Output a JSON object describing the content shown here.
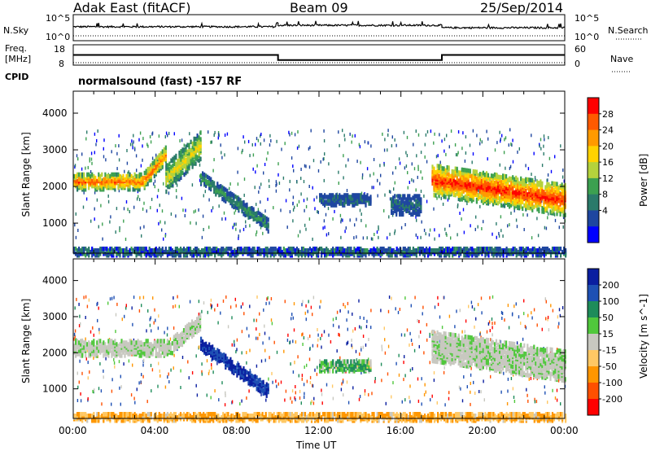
{
  "header": {
    "station": "Adak East (fitACF)",
    "beam": "Beam 09",
    "date": "25/Sep/2014"
  },
  "sky_panel": {
    "left_label": "N.Sky",
    "right_label": "N.Search",
    "left_ticks": [
      "10^5",
      "10^0"
    ],
    "right_ticks": [
      "10^5",
      "10^0"
    ]
  },
  "freq_panel": {
    "left_label_line1": "Freq.",
    "left_label_line2": "[MHz]",
    "cpid_label": "CPID",
    "right_label": "Nave",
    "left_ticks": [
      "18",
      "8"
    ],
    "right_ticks": [
      "60",
      "0"
    ]
  },
  "cpid_text": "normalsound (fast) -157 RF",
  "x_axis": {
    "label": "Time UT",
    "ticks": [
      "00:00",
      "04:00",
      "08:00",
      "12:00",
      "16:00",
      "20:00",
      "00:00"
    ]
  },
  "power_panel": {
    "ylabel": "Slant Range [km]",
    "yticks": [
      "4000",
      "3000",
      "2000",
      "1000"
    ],
    "cbar_label": "Power [dB]",
    "cbar_ticks": [
      "28",
      "24",
      "20",
      "16",
      "12",
      "8",
      "4"
    ],
    "cbar_colors": [
      "#ff0000",
      "#ff5a00",
      "#ff9a00",
      "#ffd200",
      "#b4d23c",
      "#3ca050",
      "#2a7a6a",
      "#1e46a0",
      "#0000ff"
    ]
  },
  "velocity_panel": {
    "ylabel": "Slant Range [km]",
    "yticks": [
      "4000",
      "3000",
      "2000",
      "1000"
    ],
    "cbar_label": "Velocity [m s^-1]",
    "cbar_ticks": [
      "200",
      "100",
      "50",
      "15",
      "-15",
      "-50",
      "-100",
      "-200"
    ],
    "cbar_colors": [
      "#0a1ea0",
      "#1e50b4",
      "#1e8c5a",
      "#50c83c",
      "#c8c8c0",
      "#ffc864",
      "#ff9600",
      "#ff5000",
      "#ff0000"
    ]
  },
  "chart_data": {
    "type": "heatmap",
    "title": "Adak East (fitACF) Beam 09 25/Sep/2014",
    "xlabel": "Time UT",
    "ylabel": "Slant Range [km]",
    "xlim_hours": [
      0,
      24
    ],
    "ylim_km": [
      180,
      4600
    ],
    "nsky_nsearch": {
      "segments": [
        {
          "t_start": 0,
          "t_end": 10,
          "level": 0.52
        },
        {
          "t_start": 10,
          "t_end": 18,
          "level": 0.62
        },
        {
          "t_start": 18,
          "t_end": 24,
          "level": 0.45
        }
      ]
    },
    "frequency_mhz": [
      {
        "t_start": 0,
        "t_end": 10,
        "value": 13
      },
      {
        "t_start": 10,
        "t_end": 18,
        "value": 10.5
      },
      {
        "t_start": 18,
        "t_end": 24,
        "value": 13
      }
    ],
    "power_echo_regions": [
      {
        "name": "early band",
        "t": [
          0,
          4.5
        ],
        "range_km": [
          1980,
          2500
        ],
        "peak_db": 26
      },
      {
        "name": "rising arc",
        "t": [
          4.5,
          6.2
        ],
        "range_km": [
          2300,
          3300
        ],
        "peak_db": 18
      },
      {
        "name": "descending arc",
        "t": [
          6.2,
          9.5
        ],
        "range_km": [
          900,
          2500
        ],
        "peak_db": 10
      },
      {
        "name": "midday patch",
        "t": [
          12,
          14.5
        ],
        "range_km": [
          1550,
          1850
        ],
        "peak_db": 6
      },
      {
        "name": "afternoon patch",
        "t": [
          15.5,
          17
        ],
        "range_km": [
          1300,
          1800
        ],
        "peak_db": 6
      },
      {
        "name": "evening band",
        "t": [
          17.5,
          24
        ],
        "range_km": [
          1300,
          2500
        ],
        "peak_db": 30
      },
      {
        "name": "near-range clutter",
        "t": [
          0,
          24
        ],
        "range_km": [
          180,
          400
        ],
        "peak_db": 8
      }
    ],
    "velocity_echo_regions": [
      {
        "name": "early band",
        "t": [
          0,
          6.2
        ],
        "range_km": [
          1980,
          3300
        ],
        "velocity_ms": 0
      },
      {
        "name": "descending arc",
        "t": [
          6.2,
          9.5
        ],
        "range_km": [
          900,
          2500
        ],
        "velocity_ms": 200
      },
      {
        "name": "midday patch",
        "t": [
          12,
          14.5
        ],
        "range_km": [
          1550,
          1850
        ],
        "velocity_ms": 30
      },
      {
        "name": "evening band",
        "t": [
          17.5,
          24
        ],
        "range_km": [
          1300,
          2500
        ],
        "velocity_ms": 0
      },
      {
        "name": "near-range clutter",
        "t": [
          0,
          24
        ],
        "range_km": [
          180,
          400
        ],
        "velocity_ms": -60
      }
    ]
  }
}
